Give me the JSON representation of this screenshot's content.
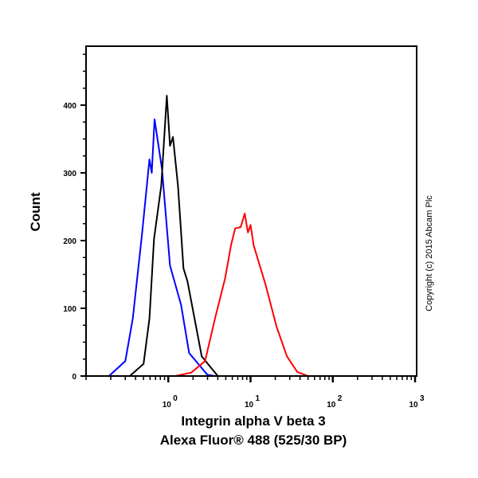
{
  "chart_data": {
    "type": "line",
    "title": "",
    "xlabel": [
      "Integrin alpha V beta 3",
      "Alexa Fluor® 488 (525/30 BP)"
    ],
    "ylabel": "Count",
    "xscale": "log",
    "xlim": [
      0.1,
      1000
    ],
    "ylim": [
      0,
      487
    ],
    "yticks": [
      0,
      100,
      200,
      300,
      400
    ],
    "ytick_labels": [
      "0",
      "100",
      "200",
      "300",
      "400"
    ],
    "xticks": [
      1,
      10,
      100,
      1000
    ],
    "xtick_labels": [
      {
        "base": "10",
        "exp": "0"
      },
      {
        "base": "10",
        "exp": "1"
      },
      {
        "base": "10",
        "exp": "2"
      },
      {
        "base": "10",
        "exp": "3"
      }
    ],
    "grid": false,
    "annotation": "Copyright (c) 2015 Abcam Plc",
    "series": [
      {
        "color": "#0000ff",
        "x": [
          0.1,
          0.19,
          0.3,
          0.37,
          0.48,
          0.59,
          0.63,
          0.68,
          0.84,
          1.05,
          1.43,
          1.79,
          2.98,
          3.7,
          1000
        ],
        "y": [
          0,
          0,
          22,
          85,
          210,
          320,
          300,
          379,
          305,
          163,
          105,
          34,
          2,
          0,
          0
        ]
      },
      {
        "color": "#000000",
        "x": [
          0.1,
          0.34,
          0.5,
          0.59,
          0.67,
          0.82,
          0.96,
          1.05,
          1.14,
          1.31,
          1.53,
          1.71,
          2.55,
          4.0,
          1000
        ],
        "y": [
          0,
          0,
          18,
          85,
          202,
          281,
          414,
          340,
          353,
          281,
          159,
          140,
          29,
          0,
          0
        ]
      },
      {
        "color": "#ff0000",
        "x": [
          0.1,
          1.22,
          1.9,
          2.8,
          3.7,
          4.9,
          5.8,
          6.5,
          7.6,
          8.5,
          9.3,
          10,
          10.9,
          15.2,
          20.7,
          27.7,
          37,
          50,
          1000
        ],
        "y": [
          0,
          0,
          5,
          22,
          85,
          144,
          194,
          218,
          220,
          240,
          212,
          223,
          193,
          135,
          73,
          29,
          6,
          0,
          0
        ]
      }
    ]
  }
}
